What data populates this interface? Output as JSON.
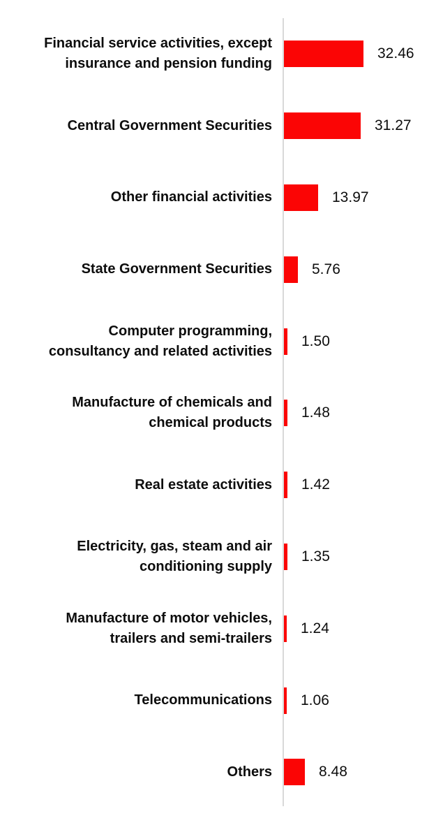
{
  "chart": {
    "bar_color": "#fb0505",
    "axis_color": "#d9d9d9",
    "text_color": "#0d0d0d",
    "background_color": "#ffffff"
  },
  "chart_data": {
    "type": "bar",
    "orientation": "horizontal",
    "title": "",
    "xlabel": "",
    "ylabel": "",
    "grid": false,
    "legend": "none",
    "xlim": [
      0,
      34
    ],
    "value_label_position": "outside-end",
    "categories": [
      "Financial service activities, except\ninsurance and pension funding",
      "Central Government Securities",
      "Other financial activities",
      "State Government Securities",
      "Computer programming,\nconsultancy and related activities",
      "Manufacture of chemicals and\nchemical products",
      "Real estate activities",
      "Electricity, gas, steam and air\nconditioning supply",
      "Manufacture of motor vehicles,\ntrailers and semi-trailers",
      "Telecommunications",
      "Others"
    ],
    "values": [
      32.46,
      31.27,
      13.97,
      5.76,
      1.5,
      1.48,
      1.42,
      1.35,
      1.24,
      1.06,
      8.48
    ],
    "value_labels": [
      "32.46",
      "31.27",
      "13.97",
      "5.76",
      "1.50",
      "1.48",
      "1.42",
      "1.35",
      "1.24",
      "1.06",
      "8.48"
    ]
  }
}
